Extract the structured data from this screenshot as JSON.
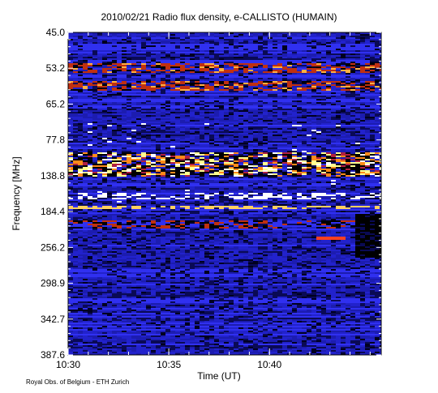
{
  "chart_data": {
    "type": "spectrogram",
    "title": "2010/02/21  Radio flux density, e-CALLISTO (HUMAIN)",
    "x_label": "Time (UT)",
    "y_label": "Frequency [MHz]",
    "footer": "Royal Obs. of Belgium - ETH Zurich",
    "xlim": [
      "10:30:00",
      "10:45:33"
    ],
    "xticks": [
      "10:30",
      "10:35",
      "10:40"
    ],
    "y_categories": [
      "45.0",
      "53.2",
      "65.2",
      "77.8",
      "138.8",
      "184.4",
      "256.2",
      "298.9",
      "342.7",
      "387.6"
    ]
  }
}
